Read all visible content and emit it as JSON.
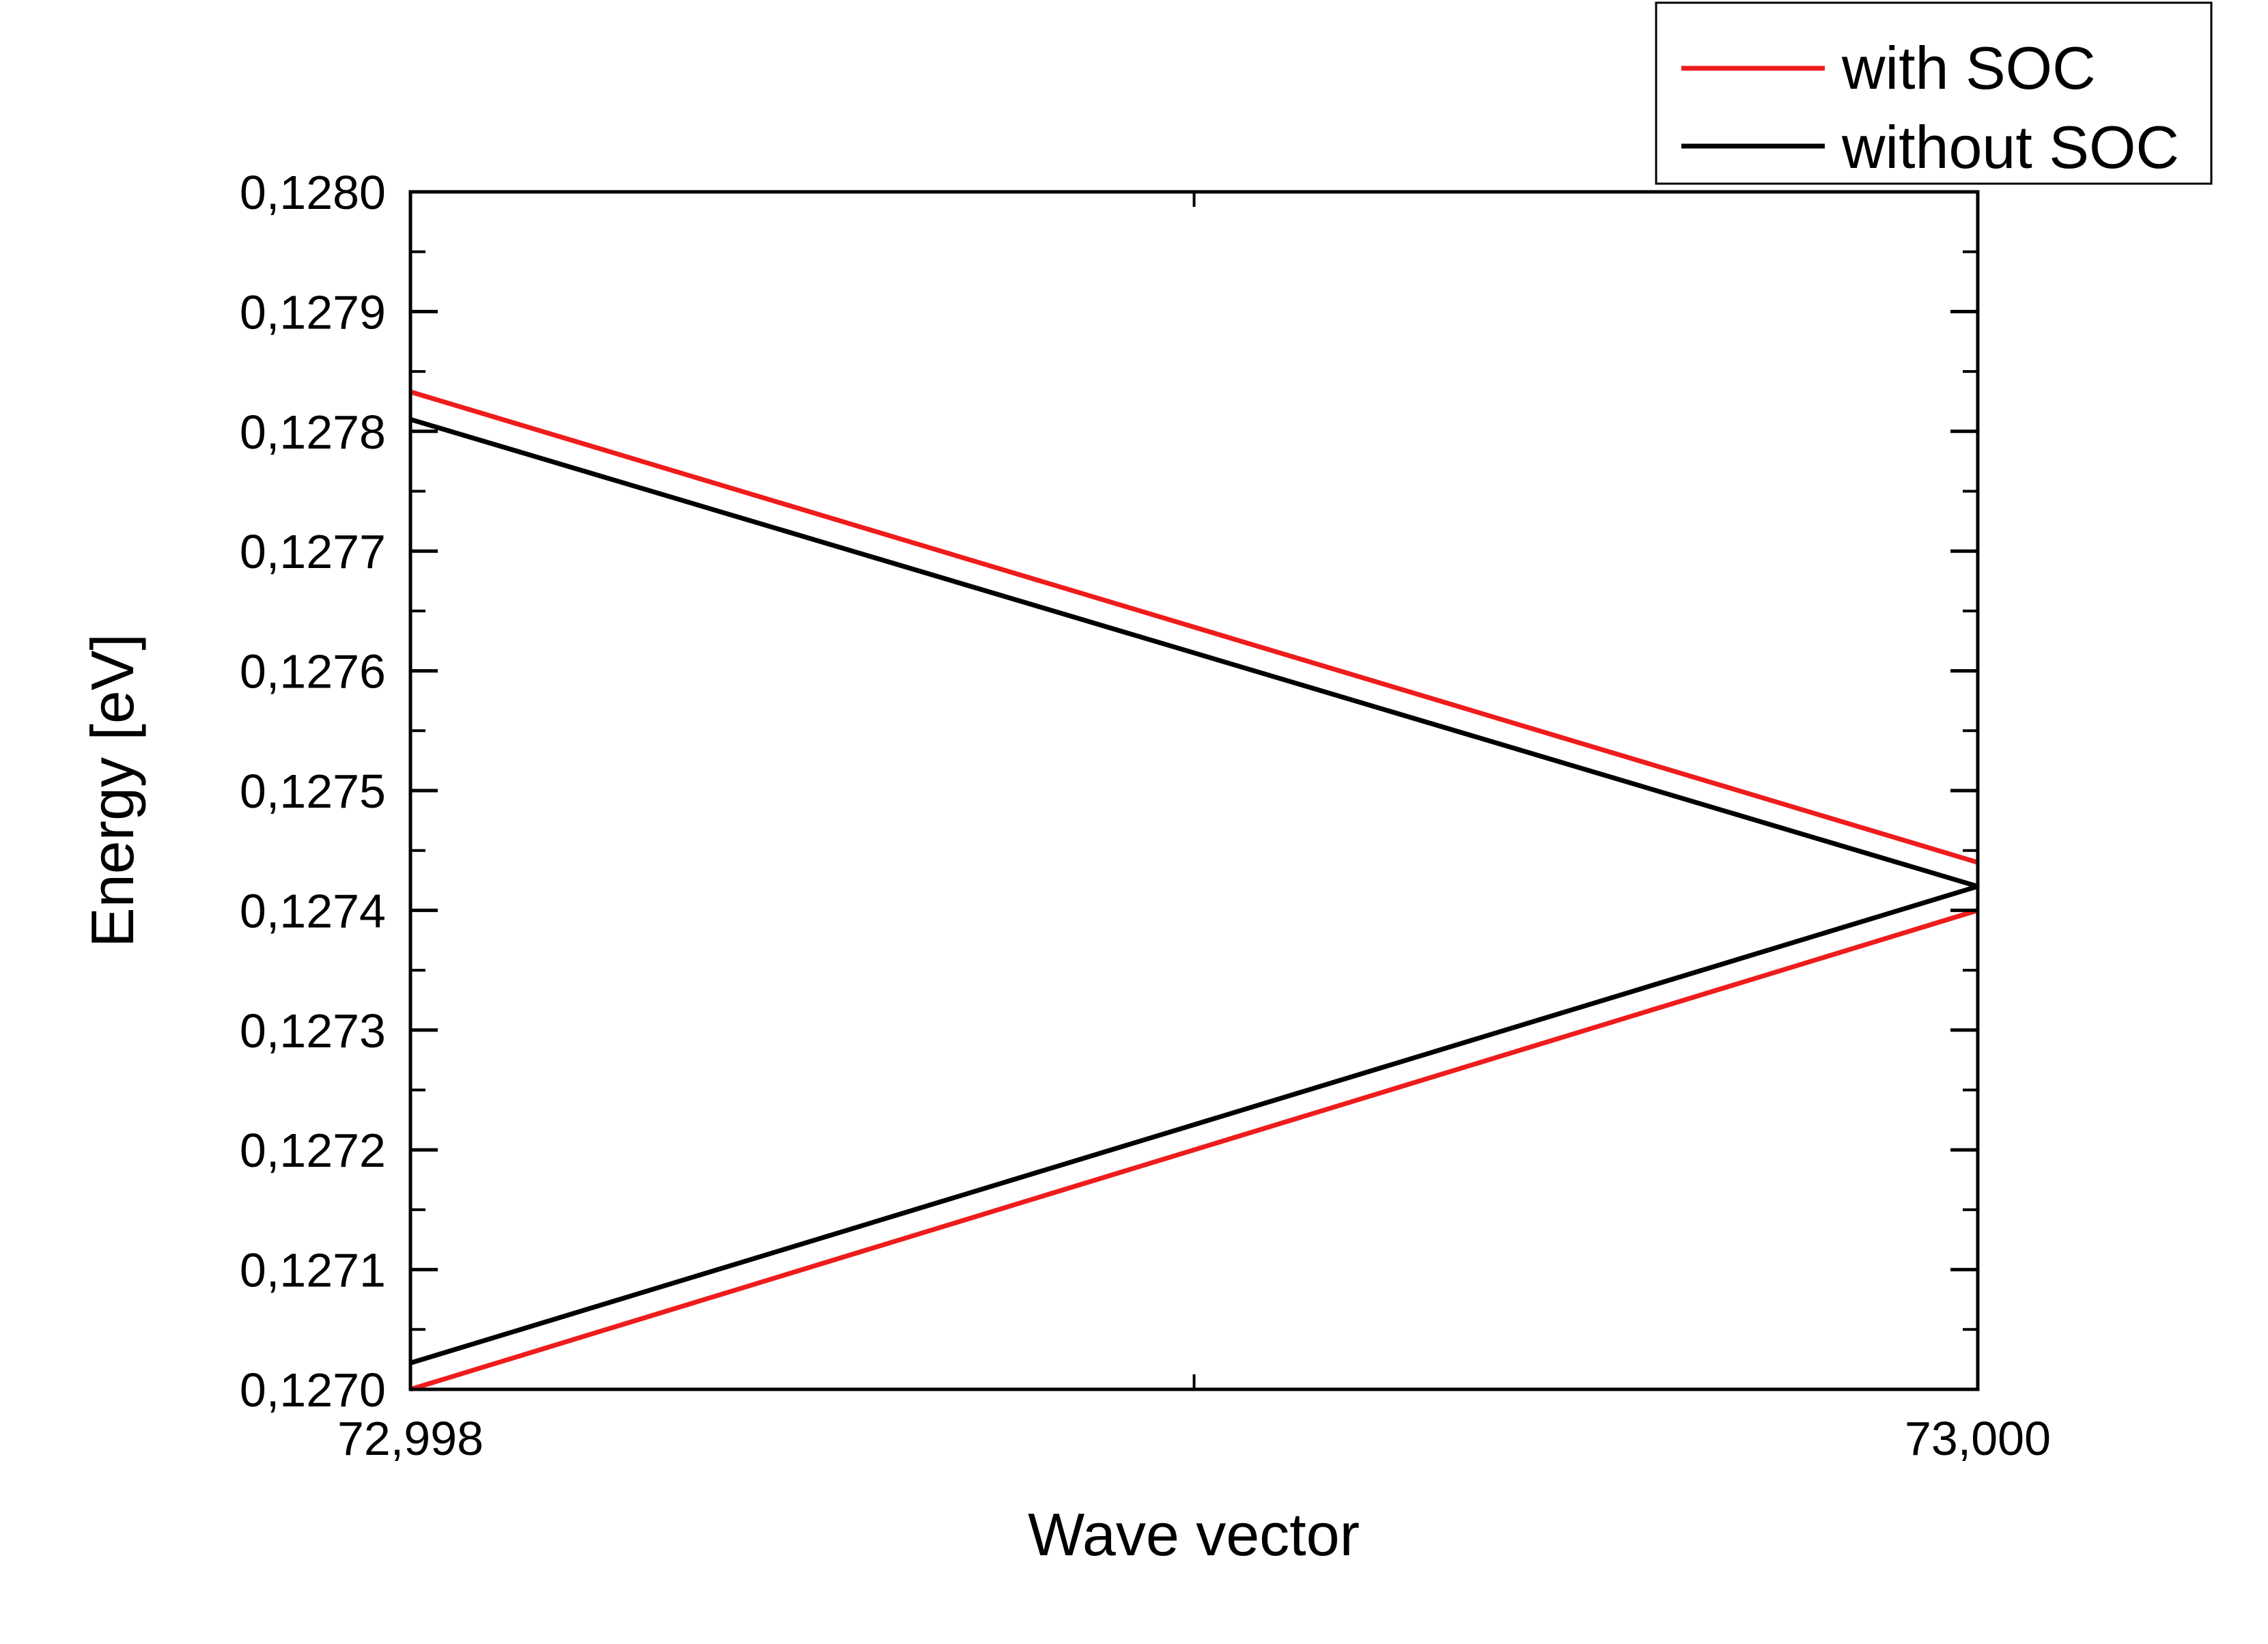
{
  "chart_data": {
    "type": "line",
    "title": "",
    "xlabel": "Wave vector",
    "ylabel": "Energy [eV]",
    "xlim": [
      72.998,
      73.0
    ],
    "ylim": [
      0.127,
      0.128
    ],
    "x_ticks": [
      72.998,
      73.0
    ],
    "x_tick_labels": [
      "72,998",
      "73,000"
    ],
    "x_minor_ticks": [
      72.999
    ],
    "y_ticks": [
      0.127,
      0.1271,
      0.1272,
      0.1273,
      0.1274,
      0.1275,
      0.1276,
      0.1277,
      0.1278,
      0.1279,
      0.128
    ],
    "y_tick_labels": [
      "0,1270",
      "0,1271",
      "0,1272",
      "0,1273",
      "0,1274",
      "0,1275",
      "0,1276",
      "0,1277",
      "0,1278",
      "0,1279",
      "0,1280"
    ],
    "grid": false,
    "legend_position": "top-right, outside plot",
    "series": [
      {
        "name": "with SOC",
        "color": "#ee1c1c",
        "lines": [
          {
            "x": [
              72.998,
              73.0
            ],
            "y": [
              0.127833,
              0.12744
            ]
          },
          {
            "x": [
              72.998,
              73.0
            ],
            "y": [
              0.127,
              0.1274
            ]
          }
        ]
      },
      {
        "name": "without SOC",
        "color": "#000000",
        "lines": [
          {
            "x": [
              72.998,
              73.0
            ],
            "y": [
              0.12781,
              0.12742
            ]
          },
          {
            "x": [
              72.998,
              73.0
            ],
            "y": [
              0.127022,
              0.12742
            ]
          }
        ]
      }
    ]
  }
}
